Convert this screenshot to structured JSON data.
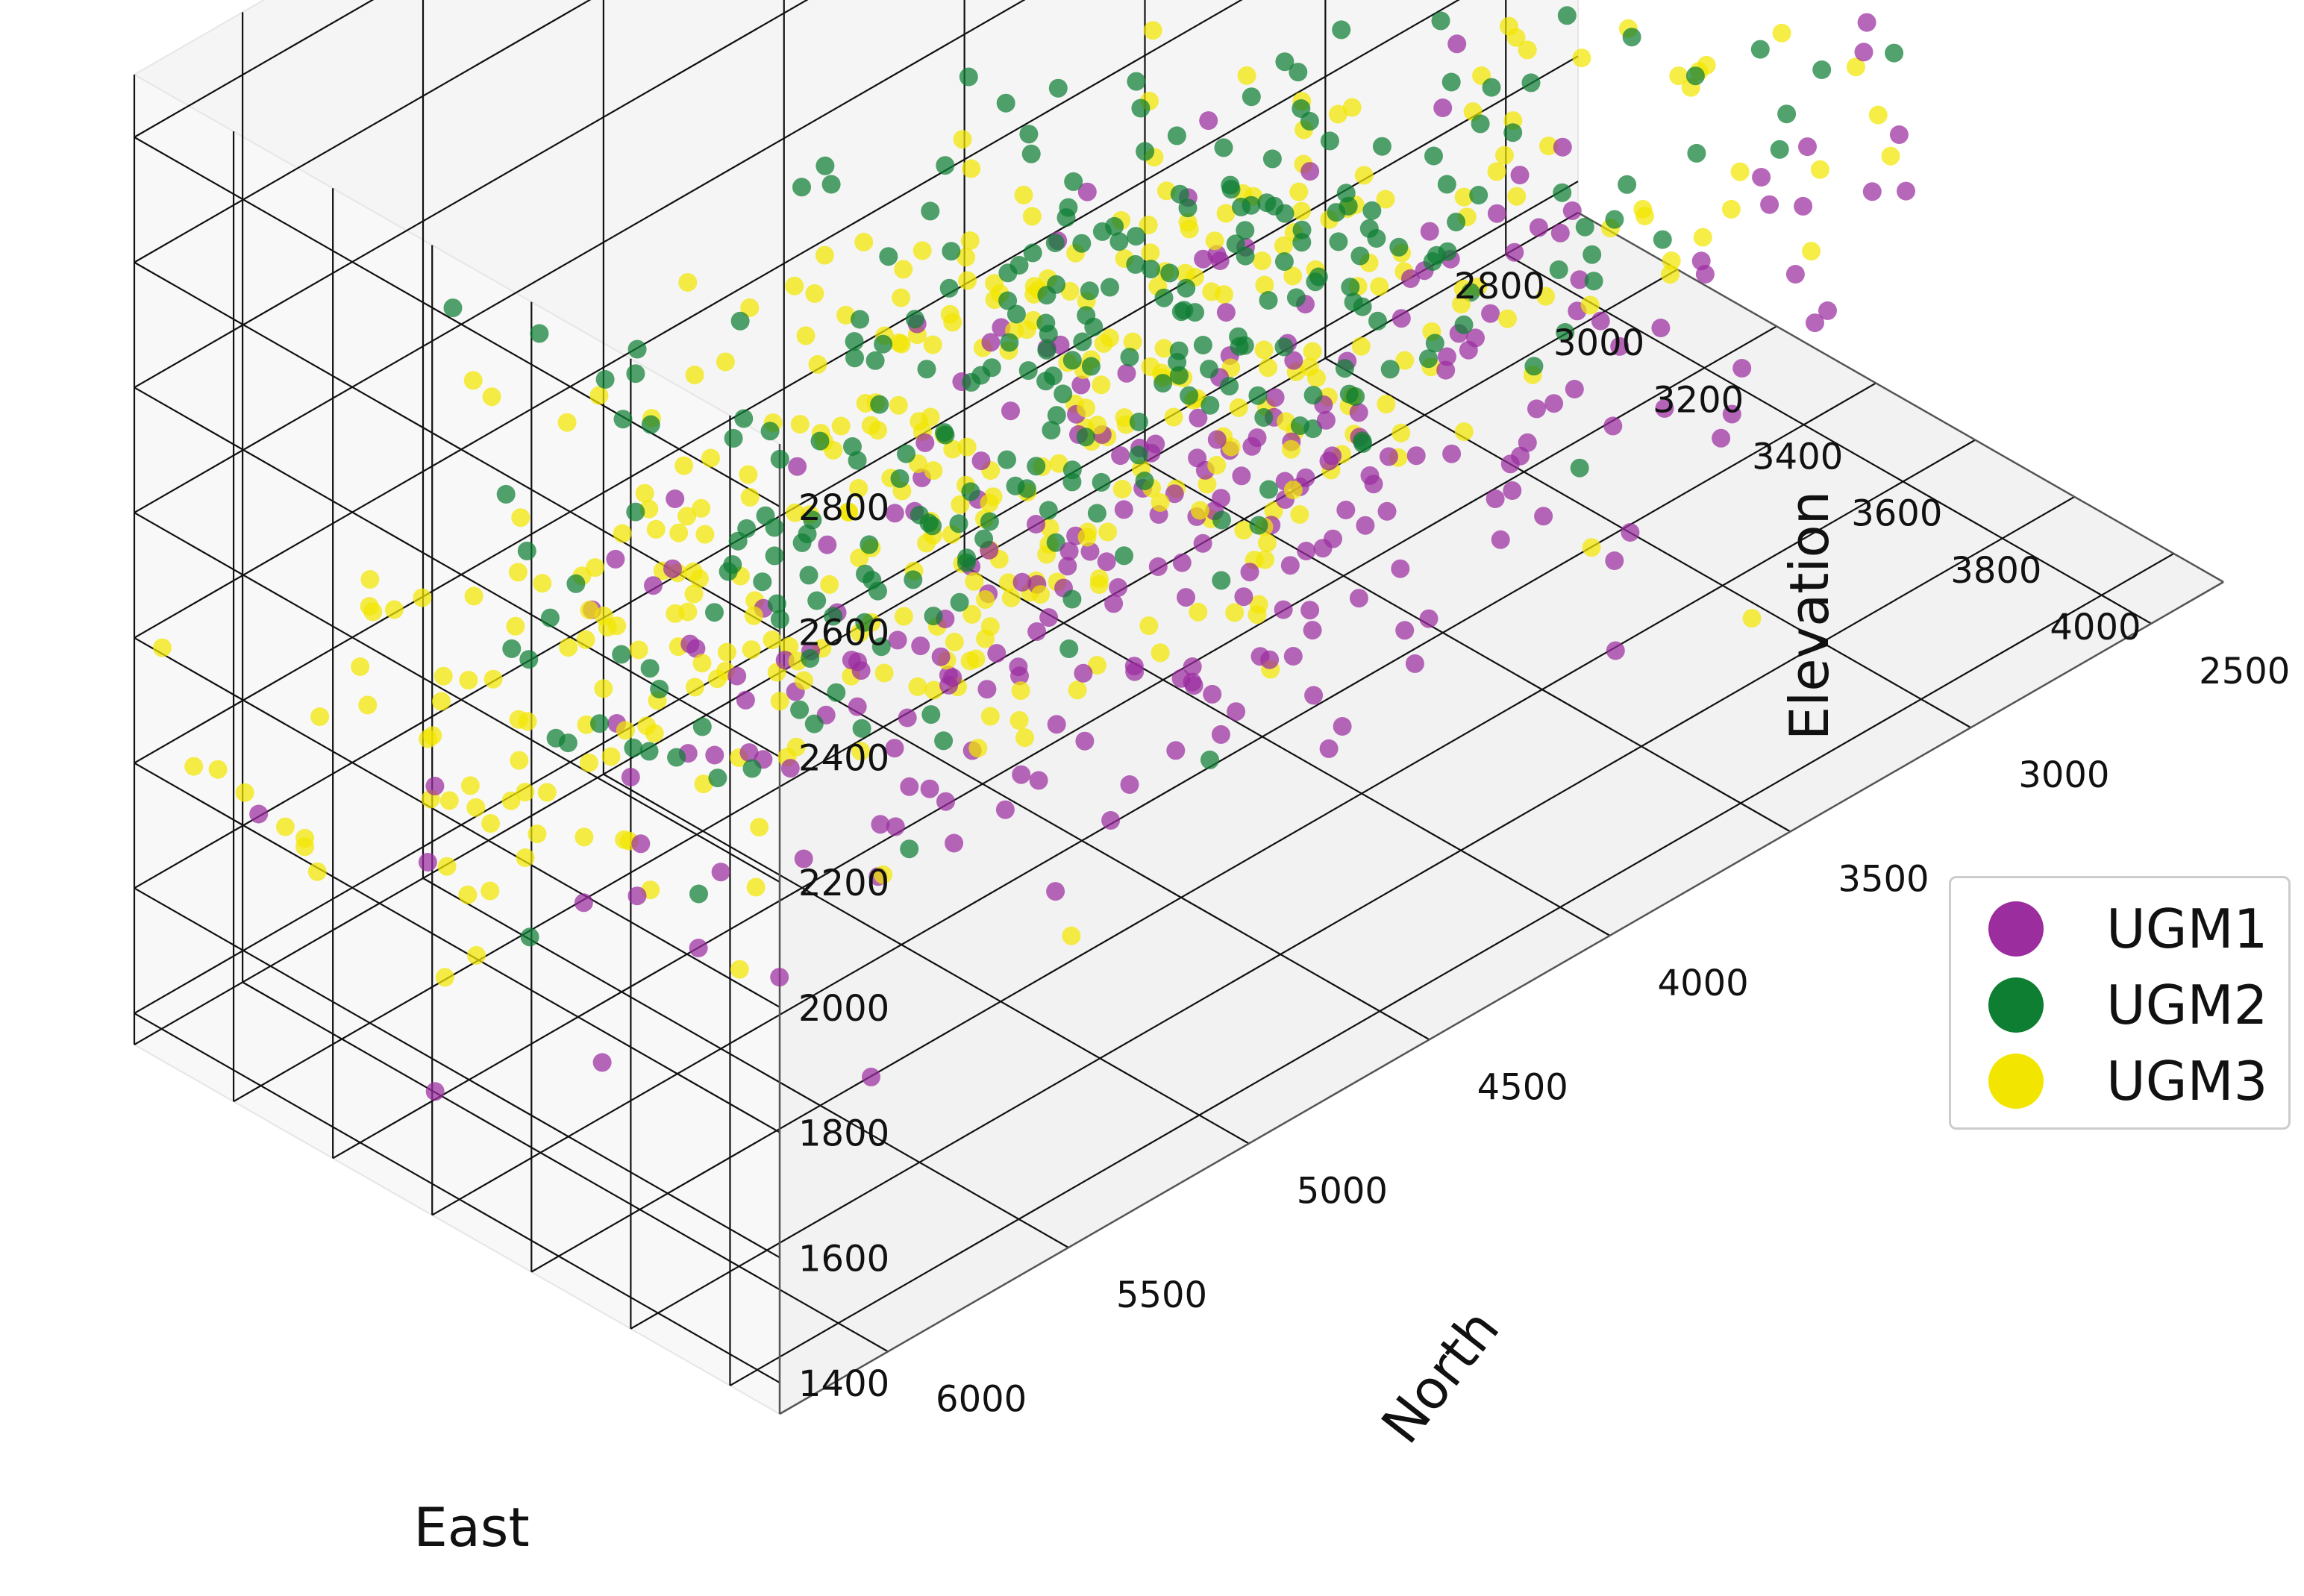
{
  "chart_data": {
    "type": "scatter",
    "projection": "3d",
    "xlabel": "East",
    "ylabel": "North",
    "zlabel": "Elevation",
    "xlim": [
      2800,
      4100
    ],
    "ylim": [
      2300,
      6300
    ],
    "zlim": [
      1350,
      2900
    ],
    "xticks": [
      2800,
      3000,
      3200,
      3400,
      3600,
      3800,
      4000
    ],
    "yticks": [
      2500,
      3000,
      3500,
      4000,
      4500,
      5000,
      5500,
      6000
    ],
    "zticks": [
      1400,
      1600,
      1800,
      2000,
      2200,
      2400,
      2600,
      2800
    ],
    "grid": true,
    "legend_position": "right",
    "series": [
      {
        "name": "UGM1",
        "color": "#9B2D9F",
        "center": {
          "x": 3500,
          "y": 4300,
          "z": 1850
        },
        "spread": {
          "x": 230,
          "y": 900,
          "z": 130
        },
        "count": 260
      },
      {
        "name": "UGM2",
        "color": "#0E7E33",
        "center": {
          "x": 3700,
          "y": 4900,
          "z": 2380
        },
        "spread": {
          "x": 180,
          "y": 800,
          "z": 200
        },
        "count": 300
      },
      {
        "name": "UGM3",
        "color": "#F2E600",
        "center": {
          "x": 3200,
          "y": 4400,
          "z": 1850
        },
        "spread": {
          "x": 230,
          "y": 1000,
          "z": 150
        },
        "count": 420
      }
    ]
  }
}
